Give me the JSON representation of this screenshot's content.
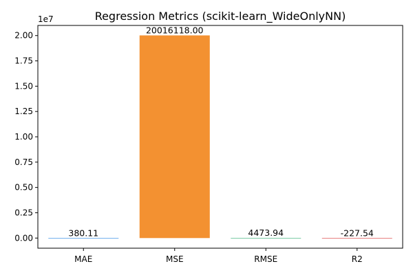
{
  "chart_data": {
    "type": "bar",
    "title": "Regression Metrics (scikit-learn_WideOnlyNN)",
    "xlabel": "",
    "ylabel": "",
    "categories": [
      "MAE",
      "MSE",
      "RMSE",
      "R2"
    ],
    "values": [
      380.11,
      20016118.0,
      4473.94,
      -227.54
    ],
    "value_labels": [
      "380.11",
      "20016118.00",
      "4473.94",
      "-227.54"
    ],
    "bar_colors": [
      "#4c9be8",
      "#f39131",
      "#5bbf8f",
      "#e05a5a"
    ],
    "ylim": [
      -1000000,
      21000000
    ],
    "y_ticks": [
      0,
      2500000,
      5000000,
      7500000,
      10000000,
      12500000,
      15000000,
      17500000,
      20000000
    ],
    "y_tick_labels": [
      "0.00",
      "0.25",
      "0.50",
      "0.75",
      "1.00",
      "1.25",
      "1.50",
      "1.75",
      "2.00"
    ],
    "y_offset_label": "1e7",
    "grid": false,
    "legend": "none"
  }
}
